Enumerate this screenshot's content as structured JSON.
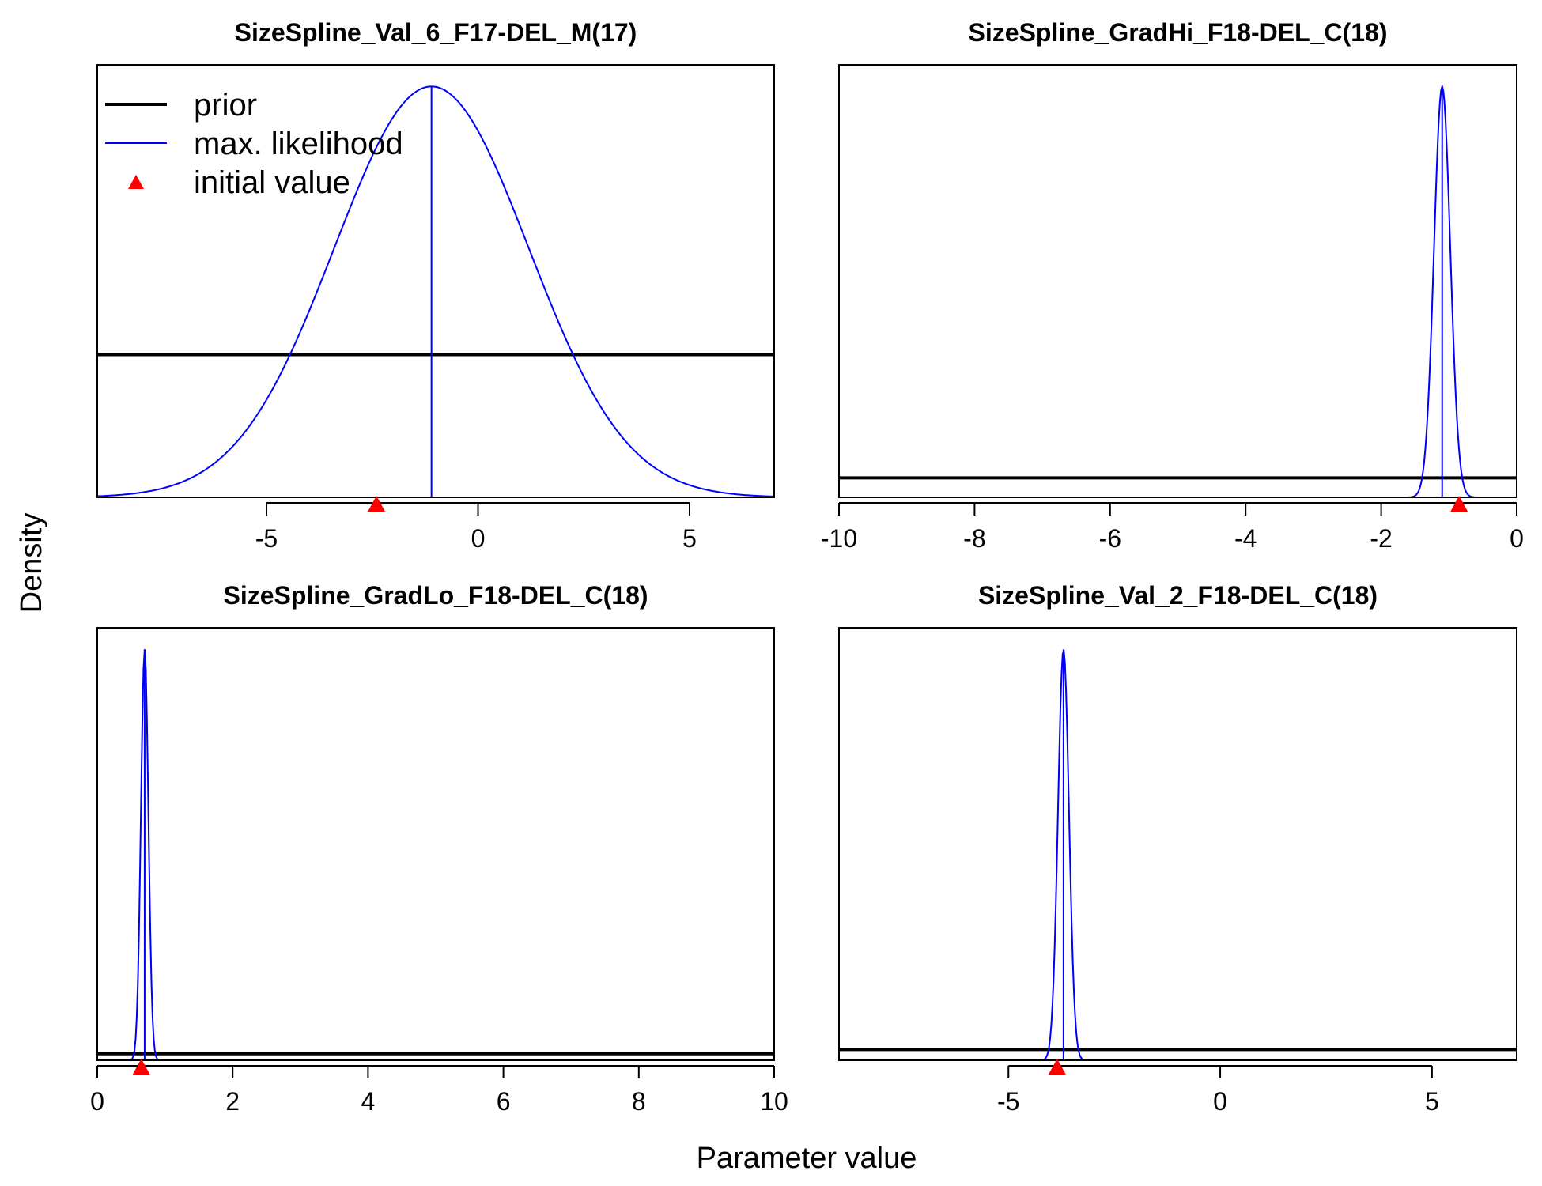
{
  "ylabel": "Density",
  "xlabel": "Parameter value",
  "colors": {
    "prior": "#000000",
    "mle": "#0000ff",
    "initial": "#ff0000",
    "frame": "#000000"
  },
  "legend": {
    "placement": "top-left of first panel",
    "entries": [
      {
        "label": "prior",
        "style": "thick-black-line"
      },
      {
        "label": "max. likelihood",
        "style": "thin-blue-line"
      },
      {
        "label": "initial value",
        "style": "red-triangle"
      }
    ]
  },
  "chart_data": [
    {
      "type": "line",
      "title": "SizeSpline_Val_6_F17-DEL_M(17)",
      "xlim": [
        -9,
        7
      ],
      "xticks": [
        -5,
        0,
        5
      ],
      "tick_labels": [
        "-5",
        "0",
        "5"
      ],
      "prior_level": 0.33,
      "mle": {
        "mean": -1.1,
        "sd": 2.3,
        "peak": 0.95
      },
      "initial_value": -2.4
    },
    {
      "type": "line",
      "title": "SizeSpline_GradHi_F18-DEL_C(18)",
      "xlim": [
        -10,
        0
      ],
      "xticks": [
        -10,
        -8,
        -6,
        -4,
        -2,
        0
      ],
      "tick_labels": [
        "-10",
        "-8",
        "-6",
        "-4",
        "-2",
        "0"
      ],
      "prior_level": 0.045,
      "mle": {
        "mean": -1.1,
        "sd": 0.12,
        "peak": 0.95
      },
      "initial_value": -0.85
    },
    {
      "type": "line",
      "title": "SizeSpline_GradLo_F18-DEL_C(18)",
      "xlim": [
        0,
        10
      ],
      "xticks": [
        0,
        2,
        4,
        6,
        8,
        10
      ],
      "tick_labels": [
        "0",
        "2",
        "4",
        "6",
        "8",
        "10"
      ],
      "prior_level": 0.015,
      "mle": {
        "mean": 0.7,
        "sd": 0.055,
        "peak": 0.95
      },
      "initial_value": 0.65
    },
    {
      "type": "line",
      "title": "SizeSpline_Val_2_F18-DEL_C(18)",
      "xlim": [
        -9,
        7
      ],
      "xticks": [
        -5,
        0,
        5
      ],
      "tick_labels": [
        "-5",
        "0",
        "5"
      ],
      "prior_level": 0.025,
      "mle": {
        "mean": -3.7,
        "sd": 0.13,
        "peak": 0.95
      },
      "initial_value": -3.85
    }
  ]
}
